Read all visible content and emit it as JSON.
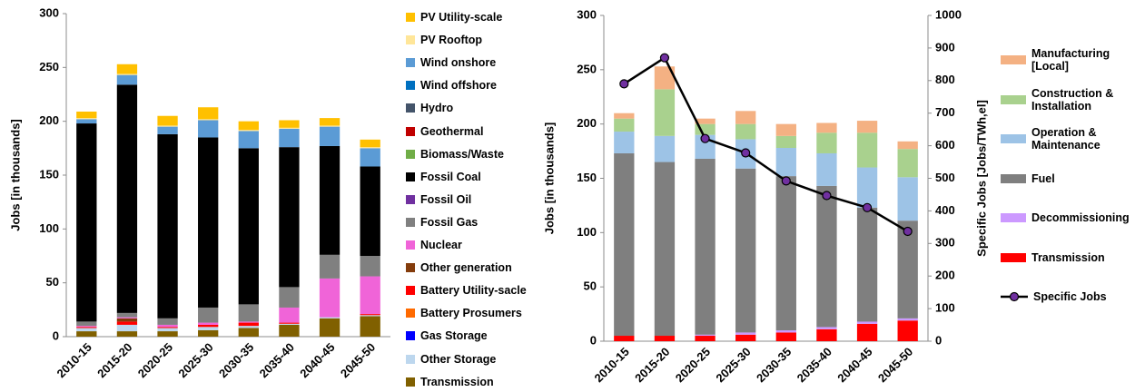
{
  "chart_data": [
    {
      "type": "bar",
      "stacked": true,
      "categories": [
        "2010-15",
        "2015-20",
        "2020-25",
        "2025-30",
        "2030-35",
        "2035-40",
        "2040-45",
        "2045-50"
      ],
      "ylabel": "Jobs [in thousands]",
      "ylim": [
        0,
        300
      ],
      "yticks": [
        0,
        50,
        100,
        150,
        200,
        250,
        300
      ],
      "series": [
        {
          "name": "PV Utility-scale",
          "color": "#ffc000",
          "values": [
            6,
            9,
            9,
            11,
            8,
            7,
            7,
            7
          ]
        },
        {
          "name": "PV Rooftop",
          "color": "#ffe699",
          "values": [
            1,
            1,
            1,
            1,
            1,
            1,
            1,
            1
          ]
        },
        {
          "name": "Wind onshore",
          "color": "#5b9bd5",
          "values": [
            4,
            9,
            7,
            16,
            16,
            17,
            18,
            17
          ]
        },
        {
          "name": "Wind offshore",
          "color": "#0070c0",
          "values": [
            0,
            0,
            0,
            0,
            0,
            0,
            0,
            0
          ]
        },
        {
          "name": "Hydro",
          "color": "#44546a",
          "values": [
            0,
            0,
            0,
            0,
            0,
            0,
            0,
            0
          ]
        },
        {
          "name": "Geothermal",
          "color": "#c00000",
          "values": [
            0,
            0,
            0,
            0,
            0,
            0,
            0,
            0
          ]
        },
        {
          "name": "Biomass/Waste",
          "color": "#70ad47",
          "values": [
            0,
            0,
            0,
            0,
            0,
            0,
            0,
            0
          ]
        },
        {
          "name": "Fossil Coal",
          "color": "#000000",
          "values": [
            184,
            212,
            171,
            158,
            145,
            130,
            101,
            83
          ]
        },
        {
          "name": "Fossil Oil",
          "color": "#7030a0",
          "values": [
            0,
            0,
            0,
            0,
            0,
            0,
            0,
            0
          ]
        },
        {
          "name": "Fossil Gas",
          "color": "#808080",
          "values": [
            4,
            4,
            6,
            14,
            16,
            19,
            22,
            19
          ]
        },
        {
          "name": "Nuclear",
          "color": "#f064d8",
          "values": [
            1,
            1,
            2,
            2,
            1,
            14,
            36,
            35
          ]
        },
        {
          "name": "Other generation",
          "color": "#843c0c",
          "values": [
            0,
            3,
            0,
            0,
            0,
            0,
            0,
            0
          ]
        },
        {
          "name": "Battery Utility-sacle",
          "color": "#ff0000",
          "values": [
            1,
            3,
            1,
            2,
            3,
            1,
            0,
            1
          ]
        },
        {
          "name": "Battery Prosumers",
          "color": "#ff6a00",
          "values": [
            0,
            0,
            0,
            0,
            0,
            0,
            0,
            0
          ]
        },
        {
          "name": "Gas Storage",
          "color": "#0000ff",
          "values": [
            0,
            0,
            0,
            0,
            0,
            0,
            0,
            0
          ]
        },
        {
          "name": "Other Storage",
          "color": "#bdd7ee",
          "values": [
            3,
            6,
            3,
            3,
            2,
            1,
            1,
            1
          ]
        },
        {
          "name": "Transmission",
          "color": "#806000",
          "values": [
            5,
            5,
            5,
            6,
            8,
            11,
            17,
            19
          ]
        }
      ]
    },
    {
      "type": "bar",
      "stacked": true,
      "categories": [
        "2010-15",
        "2015-20",
        "2020-25",
        "2025-30",
        "2030-35",
        "2035-40",
        "2040-45",
        "2045-50"
      ],
      "ylabel": "Jobs [in thousands]",
      "ylim": [
        0,
        300
      ],
      "yticks": [
        0,
        50,
        100,
        150,
        200,
        250,
        300
      ],
      "y2label": "Specific Jobs [Jobs/TWh,el]",
      "y2lim": [
        0,
        1000
      ],
      "y2ticks": [
        0,
        100,
        200,
        300,
        400,
        500,
        600,
        700,
        800,
        900,
        1000
      ],
      "series": [
        {
          "name": "Manufacturing [Local]",
          "color": "#f4b183",
          "values": [
            5,
            21,
            5,
            12,
            11,
            9,
            11,
            7
          ]
        },
        {
          "name": "Construction & Installation",
          "color": "#a9d18e",
          "values": [
            12,
            43,
            10,
            14,
            11,
            19,
            32,
            26
          ]
        },
        {
          "name": "Operation & Maintenance",
          "color": "#9dc3e6",
          "values": [
            20,
            24,
            22,
            27,
            26,
            30,
            37,
            40
          ]
        },
        {
          "name": "Fuel",
          "color": "#7f7f7f",
          "values": [
            168,
            160,
            162,
            151,
            142,
            130,
            105,
            90
          ]
        },
        {
          "name": "Decommissioning",
          "color": "#cc99ff",
          "values": [
            0,
            0,
            1,
            2,
            2,
            2,
            2,
            2
          ]
        },
        {
          "name": "Transmission",
          "color": "#ff0000",
          "values": [
            5,
            5,
            5,
            6,
            8,
            11,
            16,
            19
          ]
        },
        {
          "name": "Specific Jobs",
          "type": "line",
          "axis": "y2",
          "color": "#000000",
          "marker_color": "#7030a0",
          "values": [
            790,
            870,
            622,
            578,
            492,
            447,
            410,
            337
          ]
        }
      ]
    }
  ]
}
